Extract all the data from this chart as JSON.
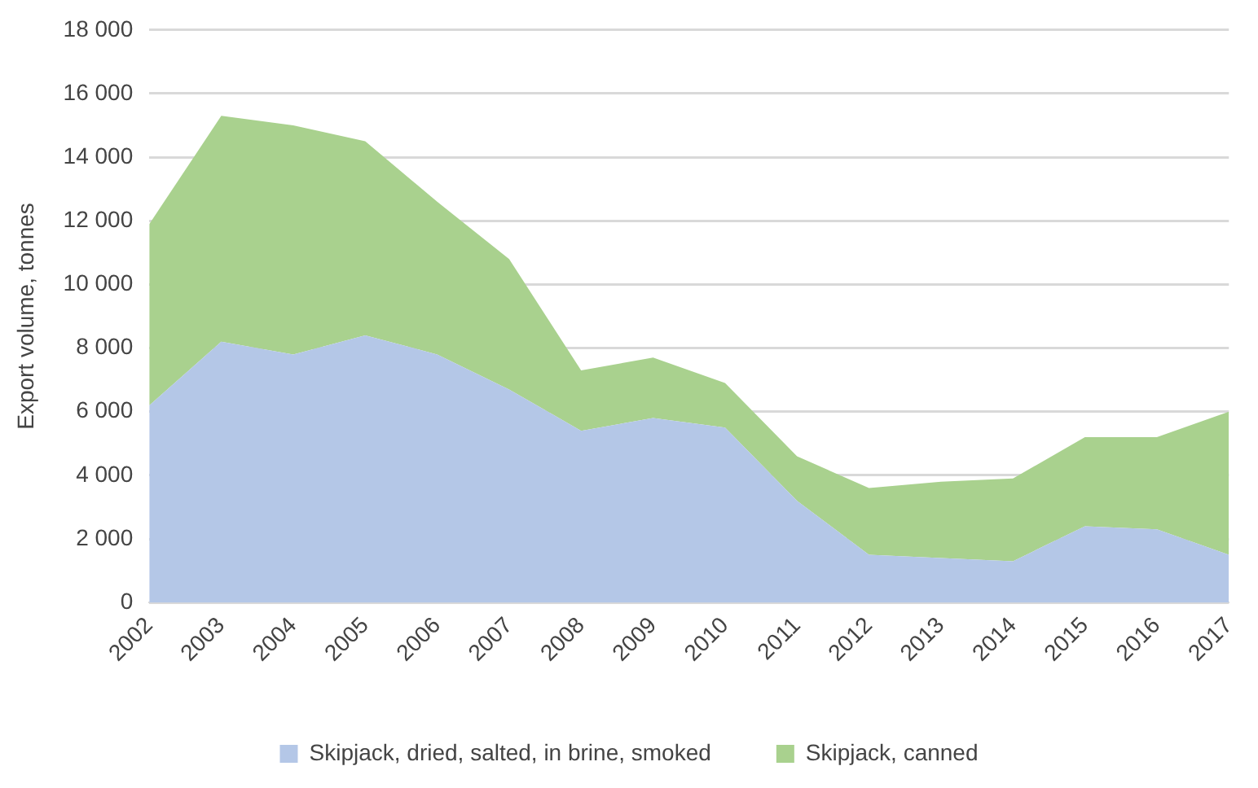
{
  "chart_data": {
    "type": "area",
    "stacked": true,
    "ylabel": "Export volume, tonnes",
    "categories": [
      "2002",
      "2003",
      "2004",
      "2005",
      "2006",
      "2007",
      "2008",
      "2009",
      "2010",
      "2011",
      "2012",
      "2013",
      "2014",
      "2015",
      "2016",
      "2017"
    ],
    "series": [
      {
        "name": "Skipjack, dried, salted, in brine, smoked",
        "color": "#b4c7e7",
        "values": [
          6200,
          8200,
          7800,
          8400,
          7800,
          6700,
          5400,
          5800,
          5500,
          3200,
          1500,
          1400,
          1300,
          2400,
          2300,
          1500
        ]
      },
      {
        "name": "Skipjack, canned",
        "color": "#a9d18e",
        "values": [
          5700,
          7100,
          7200,
          6100,
          4800,
          4100,
          1900,
          1900,
          1400,
          1400,
          2100,
          2400,
          2600,
          2800,
          2900,
          4500
        ]
      }
    ],
    "ylim": [
      0,
      18000
    ],
    "yticks": [
      {
        "value": 0,
        "label": "0"
      },
      {
        "value": 2000,
        "label": "2 000"
      },
      {
        "value": 4000,
        "label": "4 000"
      },
      {
        "value": 6000,
        "label": "6 000"
      },
      {
        "value": 8000,
        "label": "8 000"
      },
      {
        "value": 10000,
        "label": "10 000"
      },
      {
        "value": 12000,
        "label": "12 000"
      },
      {
        "value": 14000,
        "label": "14 000"
      },
      {
        "value": 16000,
        "label": "16 000"
      },
      {
        "value": 18000,
        "label": "18 000"
      }
    ],
    "grid": "y",
    "legend": "bottom"
  }
}
